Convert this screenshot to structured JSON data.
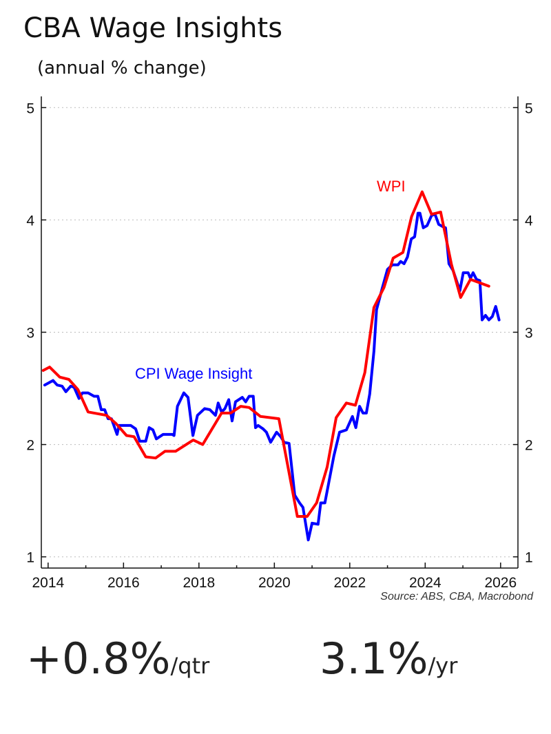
{
  "header": {
    "title": "CBA Wage Insights",
    "subtitle": "(annual % change)"
  },
  "source": "Source: ABS, CBA, Macrobond",
  "stats": [
    {
      "value": "+0.8%",
      "unit": "/qtr"
    },
    {
      "value": "3.1%",
      "unit": "/yr"
    }
  ],
  "chart_data": {
    "type": "line",
    "title": "CBA Wage Insights",
    "subtitle": "(annual % change)",
    "xlim": [
      2013.82,
      2026.46
    ],
    "ylim": [
      0.9,
      5.1
    ],
    "x_ticks": [
      2014,
      2016,
      2018,
      2020,
      2022,
      2024,
      2026
    ],
    "y_ticks": [
      1,
      2,
      3,
      4,
      5
    ],
    "y_axis": "both sides",
    "grid": "horizontal dotted",
    "legend": "inline labels",
    "series": [
      {
        "name": "CPI Wage Insight",
        "color": "#0000ff",
        "points": [
          [
            2013.91,
            2.53
          ],
          [
            2014.13,
            2.57
          ],
          [
            2014.24,
            2.53
          ],
          [
            2014.37,
            2.52
          ],
          [
            2014.47,
            2.47
          ],
          [
            2014.6,
            2.52
          ],
          [
            2014.69,
            2.51
          ],
          [
            2014.82,
            2.41
          ],
          [
            2014.91,
            2.46
          ],
          [
            2015.06,
            2.46
          ],
          [
            2015.22,
            2.43
          ],
          [
            2015.32,
            2.43
          ],
          [
            2015.41,
            2.31
          ],
          [
            2015.5,
            2.31
          ],
          [
            2015.59,
            2.23
          ],
          [
            2015.68,
            2.23
          ],
          [
            2015.83,
            2.09
          ],
          [
            2015.88,
            2.17
          ],
          [
            2016.01,
            2.17
          ],
          [
            2016.1,
            2.17
          ],
          [
            2016.19,
            2.17
          ],
          [
            2016.32,
            2.14
          ],
          [
            2016.43,
            2.03
          ],
          [
            2016.59,
            2.03
          ],
          [
            2016.68,
            2.15
          ],
          [
            2016.78,
            2.13
          ],
          [
            2016.87,
            2.05
          ],
          [
            2017.05,
            2.09
          ],
          [
            2017.29,
            2.09
          ],
          [
            2017.34,
            2.08
          ],
          [
            2017.43,
            2.34
          ],
          [
            2017.6,
            2.46
          ],
          [
            2017.71,
            2.42
          ],
          [
            2017.84,
            2.08
          ],
          [
            2017.96,
            2.26
          ],
          [
            2018.15,
            2.32
          ],
          [
            2018.29,
            2.31
          ],
          [
            2018.44,
            2.26
          ],
          [
            2018.51,
            2.37
          ],
          [
            2018.6,
            2.29
          ],
          [
            2018.69,
            2.32
          ],
          [
            2018.79,
            2.4
          ],
          [
            2018.88,
            2.21
          ],
          [
            2018.97,
            2.38
          ],
          [
            2019.15,
            2.42
          ],
          [
            2019.24,
            2.38
          ],
          [
            2019.33,
            2.43
          ],
          [
            2019.44,
            2.43
          ],
          [
            2019.5,
            2.15
          ],
          [
            2019.57,
            2.17
          ],
          [
            2019.7,
            2.14
          ],
          [
            2019.79,
            2.11
          ],
          [
            2019.9,
            2.02
          ],
          [
            2020.06,
            2.11
          ],
          [
            2020.17,
            2.07
          ],
          [
            2020.26,
            2.02
          ],
          [
            2020.39,
            2.01
          ],
          [
            2020.54,
            1.55
          ],
          [
            2020.67,
            1.48
          ],
          [
            2020.76,
            1.44
          ],
          [
            2020.9,
            1.15
          ],
          [
            2021.0,
            1.3
          ],
          [
            2021.16,
            1.29
          ],
          [
            2021.23,
            1.48
          ],
          [
            2021.34,
            1.48
          ],
          [
            2021.58,
            1.9
          ],
          [
            2021.73,
            2.11
          ],
          [
            2021.91,
            2.13
          ],
          [
            2022.07,
            2.25
          ],
          [
            2022.16,
            2.15
          ],
          [
            2022.26,
            2.34
          ],
          [
            2022.35,
            2.28
          ],
          [
            2022.44,
            2.28
          ],
          [
            2022.53,
            2.45
          ],
          [
            2022.64,
            2.83
          ],
          [
            2022.71,
            3.2
          ],
          [
            2022.86,
            3.39
          ],
          [
            2023.0,
            3.56
          ],
          [
            2023.13,
            3.6
          ],
          [
            2023.28,
            3.6
          ],
          [
            2023.35,
            3.63
          ],
          [
            2023.44,
            3.61
          ],
          [
            2023.53,
            3.67
          ],
          [
            2023.63,
            3.83
          ],
          [
            2023.72,
            3.85
          ],
          [
            2023.81,
            4.06
          ],
          [
            2023.86,
            4.06
          ],
          [
            2023.95,
            3.93
          ],
          [
            2024.05,
            3.95
          ],
          [
            2024.17,
            4.04
          ],
          [
            2024.26,
            4.05
          ],
          [
            2024.36,
            3.96
          ],
          [
            2024.47,
            3.94
          ],
          [
            2024.54,
            3.93
          ],
          [
            2024.63,
            3.61
          ],
          [
            2024.74,
            3.55
          ],
          [
            2024.83,
            3.46
          ],
          [
            2024.92,
            3.37
          ],
          [
            2025.01,
            3.53
          ],
          [
            2025.14,
            3.53
          ],
          [
            2025.2,
            3.48
          ],
          [
            2025.27,
            3.53
          ],
          [
            2025.36,
            3.47
          ],
          [
            2025.45,
            3.46
          ],
          [
            2025.51,
            3.11
          ],
          [
            2025.6,
            3.15
          ],
          [
            2025.69,
            3.11
          ],
          [
            2025.78,
            3.14
          ],
          [
            2025.87,
            3.23
          ],
          [
            2025.96,
            3.11
          ]
        ]
      },
      {
        "name": "WPI",
        "color": "#ff0000",
        "points": [
          [
            2013.87,
            2.66
          ],
          [
            2014.04,
            2.69
          ],
          [
            2014.31,
            2.6
          ],
          [
            2014.55,
            2.58
          ],
          [
            2014.79,
            2.49
          ],
          [
            2015.06,
            2.29
          ],
          [
            2015.55,
            2.26
          ],
          [
            2015.79,
            2.19
          ],
          [
            2016.08,
            2.08
          ],
          [
            2016.28,
            2.07
          ],
          [
            2016.59,
            1.89
          ],
          [
            2016.85,
            1.88
          ],
          [
            2017.1,
            1.94
          ],
          [
            2017.38,
            1.94
          ],
          [
            2017.85,
            2.04
          ],
          [
            2018.1,
            2.0
          ],
          [
            2018.6,
            2.28
          ],
          [
            2018.84,
            2.28
          ],
          [
            2019.11,
            2.34
          ],
          [
            2019.33,
            2.33
          ],
          [
            2019.63,
            2.25
          ],
          [
            2020.12,
            2.23
          ],
          [
            2020.61,
            1.36
          ],
          [
            2020.87,
            1.36
          ],
          [
            2021.12,
            1.48
          ],
          [
            2021.4,
            1.8
          ],
          [
            2021.64,
            2.24
          ],
          [
            2021.91,
            2.37
          ],
          [
            2022.15,
            2.35
          ],
          [
            2022.4,
            2.64
          ],
          [
            2022.64,
            3.22
          ],
          [
            2022.91,
            3.4
          ],
          [
            2023.15,
            3.66
          ],
          [
            2023.41,
            3.71
          ],
          [
            2023.64,
            4.03
          ],
          [
            2023.92,
            4.25
          ],
          [
            2024.17,
            4.05
          ],
          [
            2024.41,
            4.07
          ],
          [
            2024.7,
            3.6
          ],
          [
            2024.94,
            3.31
          ],
          [
            2025.2,
            3.47
          ],
          [
            2025.69,
            3.41
          ]
        ]
      }
    ]
  }
}
